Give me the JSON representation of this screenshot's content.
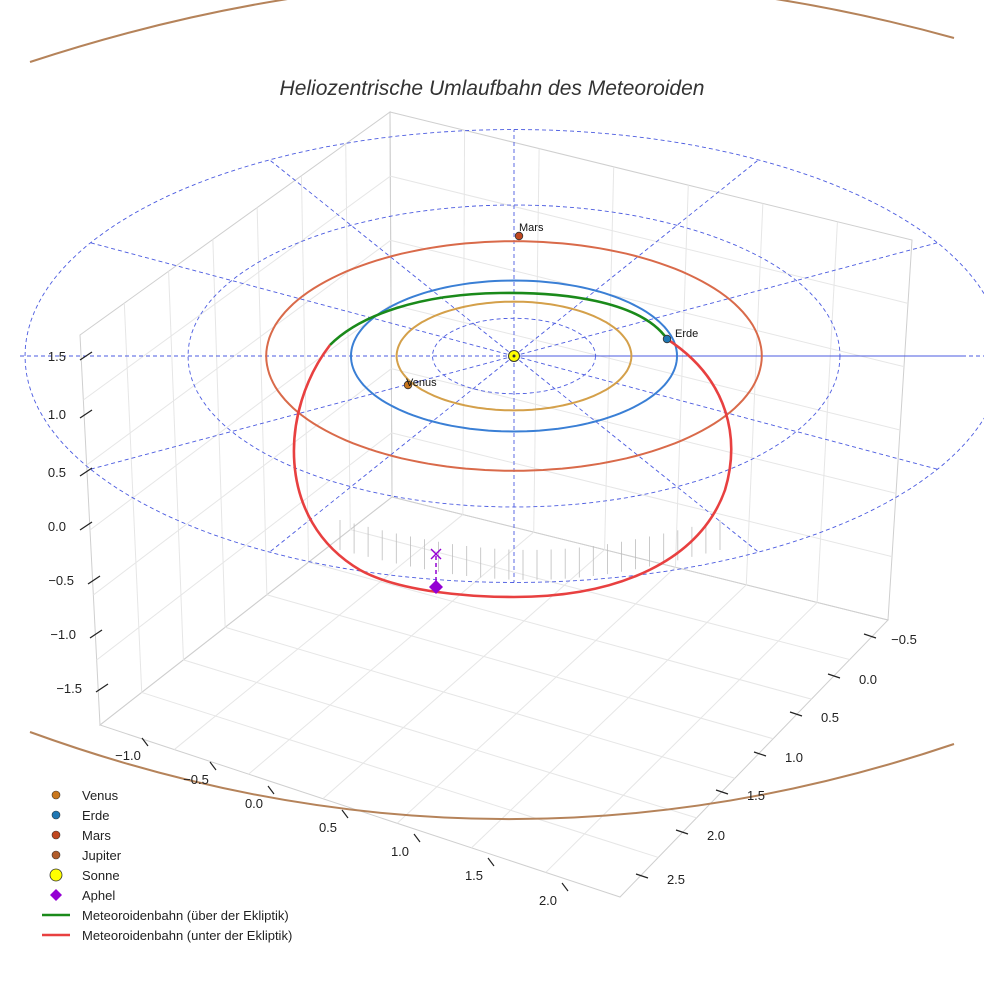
{
  "chart_data": {
    "type": "line",
    "title": "Heliozentrische Umlaufbahn des Meteoroiden",
    "projection": "3d",
    "axes": {
      "x_ticks": [
        "−1.0",
        "−0.5",
        "0.0",
        "0.5",
        "1.0",
        "1.5",
        "2.0"
      ],
      "y_ticks": [
        "−0.5",
        "0.0",
        "0.5",
        "1.0",
        "1.5",
        "2.0",
        "2.5"
      ],
      "z_ticks": [
        "1.5",
        "1.0",
        "0.5",
        "0.0",
        "−0.5",
        "−1.0",
        "−1.5"
      ],
      "xlim": [
        -1.2,
        2.2
      ],
      "ylim": [
        -0.6,
        2.7
      ],
      "zlim": [
        -1.7,
        1.6
      ]
    },
    "planets": [
      {
        "name": "Venus",
        "orbit_radius_au": 0.72,
        "color": "#d4a04a",
        "marker_color": "#c9761c",
        "label": "Venus"
      },
      {
        "name": "Erde",
        "orbit_radius_au": 1.0,
        "color": "#3a7fd5",
        "marker_color": "#1f77b4",
        "label": "Erde"
      },
      {
        "name": "Mars",
        "orbit_radius_au": 1.52,
        "color": "#d96a4a",
        "marker_color": "#c0471f",
        "label": "Mars"
      },
      {
        "name": "Jupiter",
        "orbit_radius_au": 5.2,
        "color": "#b5835a",
        "marker_color": "#b05c2a"
      }
    ],
    "sun": {
      "name": "Sonne",
      "color": "#ffff00"
    },
    "aphel": {
      "name": "Aphel",
      "color": "#9400d3"
    },
    "meteoroid_orbit": {
      "perihelion_au": 0.98,
      "aphelion_au": 1.83,
      "above_color": "#1a8a1a",
      "below_color": "#e84040",
      "above_label": "Meteoroidenbahn (über der Ekliptik)",
      "below_label": "Meteoroidenbahn (unter der Ekliptik)"
    },
    "reference_grid_color": "#4b5be0",
    "legend": [
      {
        "label": "Venus",
        "kind": "dot",
        "color": "#c9761c"
      },
      {
        "label": "Erde",
        "kind": "dot",
        "color": "#1f77b4"
      },
      {
        "label": "Mars",
        "kind": "dot",
        "color": "#c0471f"
      },
      {
        "label": "Jupiter",
        "kind": "dot",
        "color": "#b05c2a"
      },
      {
        "label": "Sonne",
        "kind": "sun",
        "color": "#ffff00"
      },
      {
        "label": "Aphel",
        "kind": "diamond",
        "color": "#9400d3"
      },
      {
        "label": "Meteoroidenbahn (über der Ekliptik)",
        "kind": "line",
        "color": "#1a8a1a"
      },
      {
        "label": "Meteoroidenbahn (unter der Ekliptik)",
        "kind": "line",
        "color": "#e84040"
      }
    ]
  }
}
